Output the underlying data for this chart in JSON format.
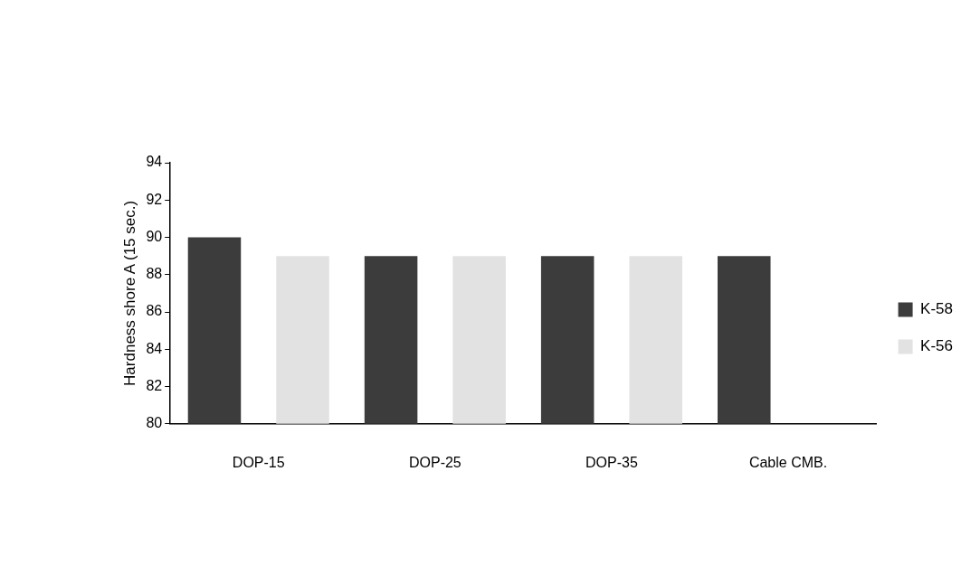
{
  "chart_data": {
    "type": "bar",
    "ylabel": "Hardness shore A (15 sec.)",
    "categories": [
      "DOP-15",
      "DOP-25",
      "DOP-35",
      "Cable CMB."
    ],
    "series": [
      {
        "name": "K-58",
        "color": "#3c3c3c",
        "values": [
          90,
          89,
          89,
          89
        ]
      },
      {
        "name": "K-56",
        "color": "#e2e2e2",
        "values": [
          89,
          89,
          89,
          null
        ]
      }
    ],
    "ylim": [
      80,
      94
    ],
    "yticks": [
      80,
      82,
      84,
      86,
      88,
      90,
      92,
      94
    ],
    "grid": false,
    "legend": "right"
  }
}
